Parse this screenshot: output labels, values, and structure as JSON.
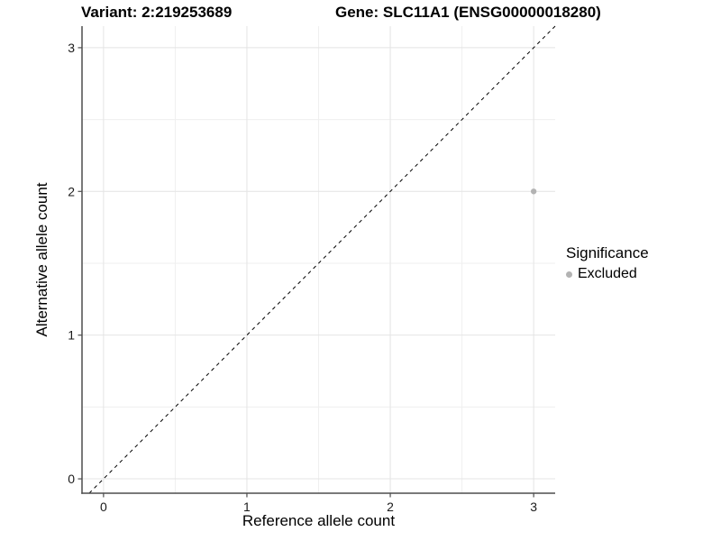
{
  "chart_data": {
    "type": "scatter",
    "title_left": "Variant: 2:219253689",
    "title_right": "Gene: SLC11A1 (ENSG00000018280)",
    "xlabel": "Reference allele count",
    "ylabel": "Alternative allele count",
    "xlim": [
      -0.15,
      3.15
    ],
    "ylim": [
      -0.1,
      3.15
    ],
    "x_ticks": [
      0,
      1,
      2,
      3
    ],
    "y_ticks": [
      0,
      1,
      2,
      3
    ],
    "x_minor_ticks": [
      0.5,
      1.5,
      2.5
    ],
    "y_minor_ticks": [
      0.5,
      1.5,
      2.5
    ],
    "grid": "on",
    "legend_position": "right",
    "legend": {
      "title": "Significance",
      "items": [
        {
          "label": "Excluded",
          "color": "#b3b3b3"
        }
      ]
    },
    "series": [
      {
        "name": "Excluded",
        "color": "#b3b3b3",
        "points": [
          [
            3,
            2
          ]
        ]
      }
    ],
    "identity_line": {
      "style": "dashed",
      "color": "#000000",
      "from": [
        -0.1,
        -0.1
      ],
      "to": [
        3.15,
        3.15
      ]
    },
    "style": {
      "panel_background": "#ffffff",
      "grid_major_color": "#e4e4e4",
      "grid_minor_color": "#efefef",
      "axis_line_color": "#4d4d4d",
      "tick_label_color": "#1a1a1a",
      "point_radius": 3.2
    }
  }
}
